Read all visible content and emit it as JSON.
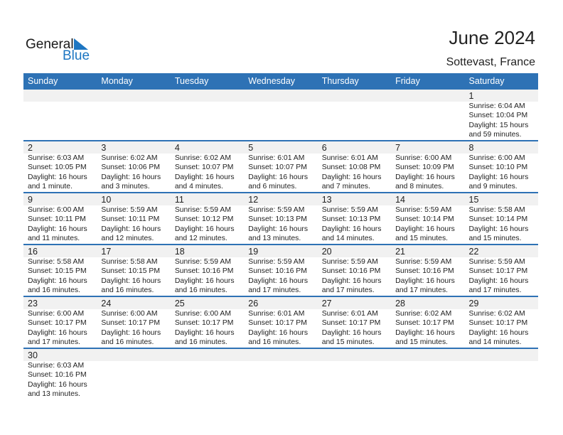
{
  "logo": {
    "line1": "General",
    "line2": "Blue"
  },
  "title": "June 2024",
  "location": "Sottevast, France",
  "colors": {
    "header": "#2e72b5",
    "logo_blue": "#1d76c2"
  },
  "weekdays": [
    "Sunday",
    "Monday",
    "Tuesday",
    "Wednesday",
    "Thursday",
    "Friday",
    "Saturday"
  ],
  "weeks": [
    [
      null,
      null,
      null,
      null,
      null,
      null,
      {
        "day": "1",
        "sunrise": "Sunrise: 6:04 AM",
        "sunset": "Sunset: 10:04 PM",
        "daylight1": "Daylight: 15 hours",
        "daylight2": "and 59 minutes."
      }
    ],
    [
      {
        "day": "2",
        "sunrise": "Sunrise: 6:03 AM",
        "sunset": "Sunset: 10:05 PM",
        "daylight1": "Daylight: 16 hours",
        "daylight2": "and 1 minute."
      },
      {
        "day": "3",
        "sunrise": "Sunrise: 6:02 AM",
        "sunset": "Sunset: 10:06 PM",
        "daylight1": "Daylight: 16 hours",
        "daylight2": "and 3 minutes."
      },
      {
        "day": "4",
        "sunrise": "Sunrise: 6:02 AM",
        "sunset": "Sunset: 10:07 PM",
        "daylight1": "Daylight: 16 hours",
        "daylight2": "and 4 minutes."
      },
      {
        "day": "5",
        "sunrise": "Sunrise: 6:01 AM",
        "sunset": "Sunset: 10:07 PM",
        "daylight1": "Daylight: 16 hours",
        "daylight2": "and 6 minutes."
      },
      {
        "day": "6",
        "sunrise": "Sunrise: 6:01 AM",
        "sunset": "Sunset: 10:08 PM",
        "daylight1": "Daylight: 16 hours",
        "daylight2": "and 7 minutes."
      },
      {
        "day": "7",
        "sunrise": "Sunrise: 6:00 AM",
        "sunset": "Sunset: 10:09 PM",
        "daylight1": "Daylight: 16 hours",
        "daylight2": "and 8 minutes."
      },
      {
        "day": "8",
        "sunrise": "Sunrise: 6:00 AM",
        "sunset": "Sunset: 10:10 PM",
        "daylight1": "Daylight: 16 hours",
        "daylight2": "and 9 minutes."
      }
    ],
    [
      {
        "day": "9",
        "sunrise": "Sunrise: 6:00 AM",
        "sunset": "Sunset: 10:11 PM",
        "daylight1": "Daylight: 16 hours",
        "daylight2": "and 11 minutes."
      },
      {
        "day": "10",
        "sunrise": "Sunrise: 5:59 AM",
        "sunset": "Sunset: 10:11 PM",
        "daylight1": "Daylight: 16 hours",
        "daylight2": "and 12 minutes."
      },
      {
        "day": "11",
        "sunrise": "Sunrise: 5:59 AM",
        "sunset": "Sunset: 10:12 PM",
        "daylight1": "Daylight: 16 hours",
        "daylight2": "and 12 minutes."
      },
      {
        "day": "12",
        "sunrise": "Sunrise: 5:59 AM",
        "sunset": "Sunset: 10:13 PM",
        "daylight1": "Daylight: 16 hours",
        "daylight2": "and 13 minutes."
      },
      {
        "day": "13",
        "sunrise": "Sunrise: 5:59 AM",
        "sunset": "Sunset: 10:13 PM",
        "daylight1": "Daylight: 16 hours",
        "daylight2": "and 14 minutes."
      },
      {
        "day": "14",
        "sunrise": "Sunrise: 5:59 AM",
        "sunset": "Sunset: 10:14 PM",
        "daylight1": "Daylight: 16 hours",
        "daylight2": "and 15 minutes."
      },
      {
        "day": "15",
        "sunrise": "Sunrise: 5:58 AM",
        "sunset": "Sunset: 10:14 PM",
        "daylight1": "Daylight: 16 hours",
        "daylight2": "and 15 minutes."
      }
    ],
    [
      {
        "day": "16",
        "sunrise": "Sunrise: 5:58 AM",
        "sunset": "Sunset: 10:15 PM",
        "daylight1": "Daylight: 16 hours",
        "daylight2": "and 16 minutes."
      },
      {
        "day": "17",
        "sunrise": "Sunrise: 5:58 AM",
        "sunset": "Sunset: 10:15 PM",
        "daylight1": "Daylight: 16 hours",
        "daylight2": "and 16 minutes."
      },
      {
        "day": "18",
        "sunrise": "Sunrise: 5:59 AM",
        "sunset": "Sunset: 10:16 PM",
        "daylight1": "Daylight: 16 hours",
        "daylight2": "and 16 minutes."
      },
      {
        "day": "19",
        "sunrise": "Sunrise: 5:59 AM",
        "sunset": "Sunset: 10:16 PM",
        "daylight1": "Daylight: 16 hours",
        "daylight2": "and 17 minutes."
      },
      {
        "day": "20",
        "sunrise": "Sunrise: 5:59 AM",
        "sunset": "Sunset: 10:16 PM",
        "daylight1": "Daylight: 16 hours",
        "daylight2": "and 17 minutes."
      },
      {
        "day": "21",
        "sunrise": "Sunrise: 5:59 AM",
        "sunset": "Sunset: 10:16 PM",
        "daylight1": "Daylight: 16 hours",
        "daylight2": "and 17 minutes."
      },
      {
        "day": "22",
        "sunrise": "Sunrise: 5:59 AM",
        "sunset": "Sunset: 10:17 PM",
        "daylight1": "Daylight: 16 hours",
        "daylight2": "and 17 minutes."
      }
    ],
    [
      {
        "day": "23",
        "sunrise": "Sunrise: 6:00 AM",
        "sunset": "Sunset: 10:17 PM",
        "daylight1": "Daylight: 16 hours",
        "daylight2": "and 17 minutes."
      },
      {
        "day": "24",
        "sunrise": "Sunrise: 6:00 AM",
        "sunset": "Sunset: 10:17 PM",
        "daylight1": "Daylight: 16 hours",
        "daylight2": "and 16 minutes."
      },
      {
        "day": "25",
        "sunrise": "Sunrise: 6:00 AM",
        "sunset": "Sunset: 10:17 PM",
        "daylight1": "Daylight: 16 hours",
        "daylight2": "and 16 minutes."
      },
      {
        "day": "26",
        "sunrise": "Sunrise: 6:01 AM",
        "sunset": "Sunset: 10:17 PM",
        "daylight1": "Daylight: 16 hours",
        "daylight2": "and 16 minutes."
      },
      {
        "day": "27",
        "sunrise": "Sunrise: 6:01 AM",
        "sunset": "Sunset: 10:17 PM",
        "daylight1": "Daylight: 16 hours",
        "daylight2": "and 15 minutes."
      },
      {
        "day": "28",
        "sunrise": "Sunrise: 6:02 AM",
        "sunset": "Sunset: 10:17 PM",
        "daylight1": "Daylight: 16 hours",
        "daylight2": "and 15 minutes."
      },
      {
        "day": "29",
        "sunrise": "Sunrise: 6:02 AM",
        "sunset": "Sunset: 10:17 PM",
        "daylight1": "Daylight: 16 hours",
        "daylight2": "and 14 minutes."
      }
    ],
    [
      {
        "day": "30",
        "sunrise": "Sunrise: 6:03 AM",
        "sunset": "Sunset: 10:16 PM",
        "daylight1": "Daylight: 16 hours",
        "daylight2": "and 13 minutes."
      },
      null,
      null,
      null,
      null,
      null,
      null
    ]
  ]
}
